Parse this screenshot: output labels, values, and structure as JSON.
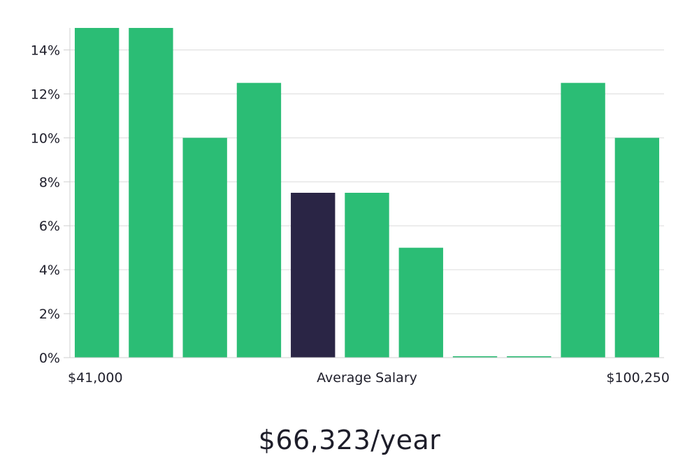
{
  "chart_data": {
    "type": "bar",
    "title": "",
    "xlabel": "Average Salary",
    "ylabel": "",
    "x_min_label": "$41,000",
    "x_max_label": "$100,250",
    "ylim": [
      0,
      15
    ],
    "yticks": [
      0,
      2,
      4,
      6,
      8,
      10,
      12,
      14
    ],
    "ytick_suffix": "%",
    "values": [
      15,
      15,
      10,
      12.5,
      7.5,
      7.5,
      5,
      0,
      0,
      12.5,
      10
    ],
    "highlight_index": 4,
    "grid": true
  },
  "colors": {
    "bar": "#2bbd75",
    "highlight": "#2a2545",
    "grid": "#dcdcdc",
    "axis": "#cfcfcf",
    "text": "#1e1e2a"
  },
  "salary": {
    "display": "$66,323/year"
  }
}
